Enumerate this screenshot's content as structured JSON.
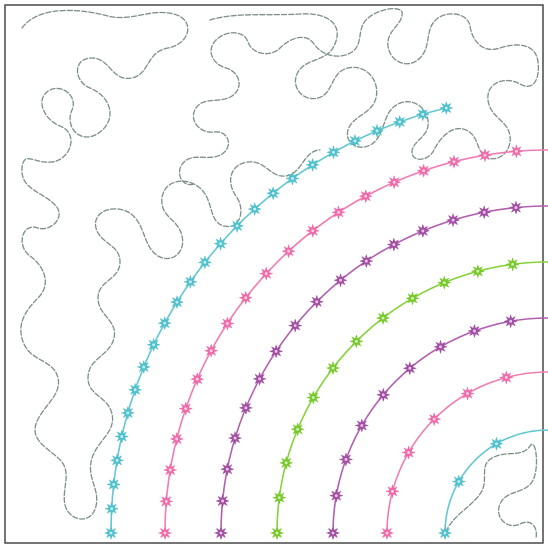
{
  "design": {
    "background": "#ffffff",
    "frame_color": "#3a3a3a",
    "meander_color": "#7b8f86",
    "flower_icon": "eight-point-star-flower",
    "flower_center_color": "#ffffff",
    "arcs": [
      {
        "name": "cyan-outer",
        "color": "#63c7d1",
        "flower_color": "#4fc0cc",
        "flowers": 25
      },
      {
        "name": "pink-1",
        "color": "#f07cb4",
        "flower_color": "#ee6aa8",
        "flowers": 20
      },
      {
        "name": "purple-1",
        "color": "#b15fb0",
        "flower_color": "#a24ea2",
        "flowers": 17
      },
      {
        "name": "green",
        "color": "#86d23a",
        "flower_color": "#77c92a",
        "flowers": 13
      },
      {
        "name": "purple-2",
        "color": "#b15fb0",
        "flower_color": "#a24ea2",
        "flowers": 10
      },
      {
        "name": "pink-2",
        "color": "#f07cb4",
        "flower_color": "#ee6aa8",
        "flowers": 7
      },
      {
        "name": "cyan-inner",
        "color": "#63c7d1",
        "flower_color": "#4fc0cc",
        "flowers": 4
      }
    ]
  }
}
